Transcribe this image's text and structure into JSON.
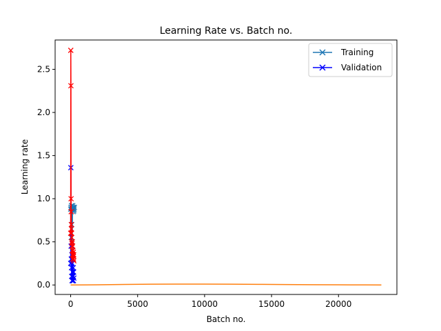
{
  "chart_data": {
    "type": "line",
    "title": "Learning Rate vs. Batch no.",
    "xlabel": "Batch no.",
    "ylabel": "Learning rate",
    "xlim": [
      -1160,
      24360
    ],
    "ylim": [
      -0.11,
      2.84
    ],
    "x_ticks": [
      0,
      5000,
      10000,
      15000,
      20000
    ],
    "x_tick_labels": [
      "0",
      "5000",
      "10000",
      "15000",
      "20000"
    ],
    "y_ticks": [
      0.0,
      0.5,
      1.0,
      1.5,
      2.0,
      2.5
    ],
    "y_tick_labels": [
      "0.0",
      "0.5",
      "1.0",
      "1.5",
      "2.0",
      "2.5"
    ],
    "legend": {
      "position": "top-right",
      "entries": [
        {
          "label": "Training",
          "color": "#1f77b4",
          "marker": "x"
        },
        {
          "label": "Validation",
          "color": "#0000ff",
          "marker": "x"
        }
      ]
    },
    "series": [
      {
        "color": "#1f77b4",
        "marker": "x",
        "x": [
          0,
          20,
          40,
          60,
          80,
          100,
          120,
          140,
          160,
          180,
          200,
          220,
          240,
          260,
          280
        ],
        "y": [
          0.88,
          0.9,
          0.55,
          0.92,
          0.7,
          0.88,
          0.5,
          0.9,
          0.92,
          0.85,
          0.88,
          0.9,
          0.86,
          0.88,
          0.9
        ]
      },
      {
        "name": "Validation",
        "color": "#0000ff",
        "marker": "x",
        "x": [
          0,
          15,
          30,
          45,
          60,
          75,
          90,
          105,
          120,
          135,
          150,
          165,
          180,
          195,
          210,
          225,
          240
        ],
        "y": [
          0.25,
          1.36,
          0.45,
          0.3,
          0.2,
          0.1,
          0.35,
          0.05,
          0.25,
          0.15,
          0.05,
          0.3,
          0.1,
          0.2,
          0.05,
          0.15,
          0.08
        ]
      },
      {
        "color": "#ff0000",
        "marker": "x",
        "x": [
          0,
          10,
          20,
          30,
          40,
          50,
          60,
          70,
          80,
          90,
          100,
          110,
          120,
          130,
          140,
          150,
          160,
          170,
          180,
          190,
          200,
          210,
          220,
          230,
          240
        ],
        "y": [
          0.6,
          2.72,
          2.31,
          1.0,
          0.85,
          0.7,
          0.65,
          0.6,
          0.55,
          0.5,
          0.48,
          0.45,
          0.5,
          0.4,
          0.35,
          0.45,
          0.3,
          0.4,
          0.35,
          0.3,
          0.38,
          0.33,
          0.3,
          0.35,
          0.28
        ]
      },
      {
        "color": "#ff7f0e",
        "marker": "none",
        "x": [
          0,
          2000,
          4000,
          6000,
          8000,
          10000,
          12000,
          14000,
          16000,
          18000,
          20000,
          22000,
          23200
        ],
        "y": [
          0.0,
          0.002,
          0.006,
          0.009,
          0.01,
          0.0095,
          0.0085,
          0.007,
          0.005,
          0.003,
          0.0015,
          0.0005,
          0.0
        ]
      }
    ]
  }
}
